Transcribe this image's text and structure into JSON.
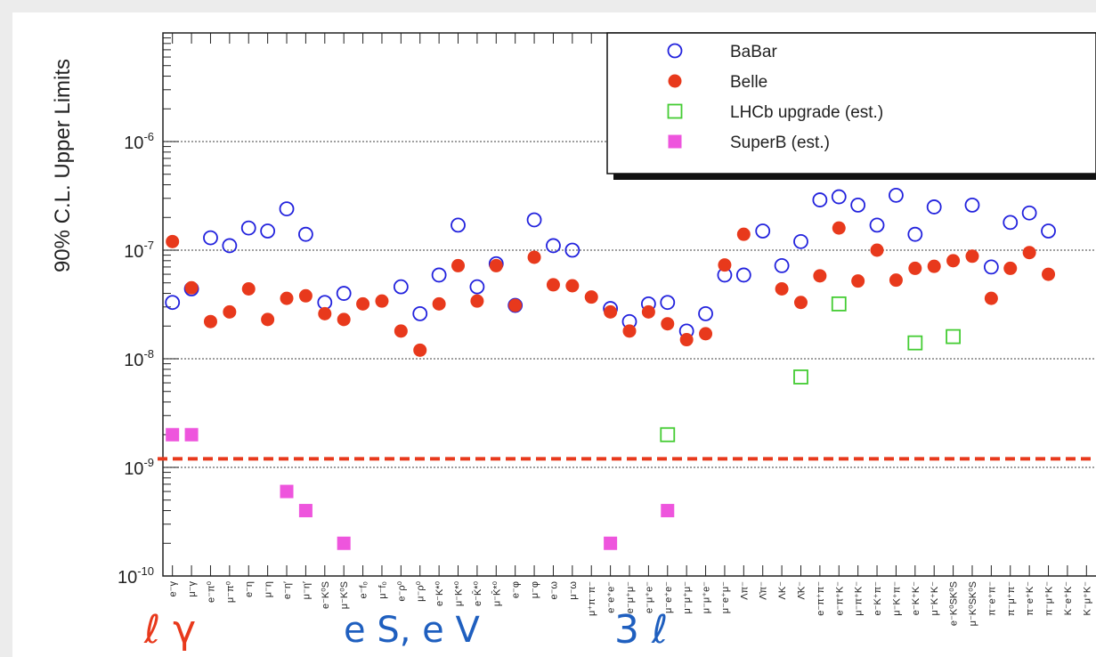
{
  "chart_data": {
    "type": "scatter",
    "ylabel": "90% C.L. Upper Limits",
    "yscale": "log",
    "ylim": [
      1e-10,
      1e-05
    ],
    "y_ticks": [
      {
        "value": 1e-10,
        "mantissa": "10",
        "exp": "-10"
      },
      {
        "value": 1e-09,
        "mantissa": "10",
        "exp": "-9"
      },
      {
        "value": 1e-08,
        "mantissa": "10",
        "exp": "-8"
      },
      {
        "value": 1e-07,
        "mantissa": "10",
        "exp": "-7"
      },
      {
        "value": 1e-06,
        "mantissa": "10",
        "exp": "-6"
      }
    ],
    "grid_y": [
      1e-09,
      1e-08,
      1e-07,
      1e-06
    ],
    "reference_line": {
      "value": 1.2e-09,
      "color": "#e8391c"
    },
    "categories": [
      "e⁻γ",
      "μ⁻γ",
      "e⁻π⁰",
      "μ⁻π⁰",
      "e⁻η",
      "μ⁻η",
      "e⁻η′",
      "μ⁻η′",
      "e⁻K⁰S",
      "μ⁻K⁰S",
      "e⁻f₀",
      "μ⁻f₀",
      "e⁻ρ⁰",
      "μ⁻ρ⁰",
      "e⁻K*⁰",
      "μ⁻K*⁰",
      "e⁻K̄*⁰",
      "μ⁻K̄*⁰",
      "e⁻φ",
      "μ⁻φ",
      "e⁻ω",
      "μ⁻ω",
      "μ⁺π⁻π⁻",
      "e⁻e⁺e⁻",
      "e⁻μ⁺μ⁻",
      "e⁻μ⁺e⁻",
      "μ⁻e⁺e⁻",
      "μ⁻μ⁺μ⁻",
      "μ⁻μ⁺e⁻",
      "μ⁻e⁺μ⁻",
      "Λπ⁻",
      "Λ̄π⁻",
      "ΛK⁻",
      "Λ̄K⁻",
      "e⁻π⁺π⁻",
      "e⁻π⁺K⁻",
      "μ⁻π⁺K⁻",
      "e⁻K⁺π⁻",
      "μ⁻K⁺π⁻",
      "e⁻K⁺K⁻",
      "μ⁻K⁺K⁻",
      "e⁻K⁰SK⁰S",
      "μ⁻K⁰SK⁰S",
      "π⁻e⁺π⁻",
      "π⁻μ⁺π⁻",
      "π⁻e⁺K⁻",
      "π⁻μ⁺K⁻",
      "K⁻e⁺K⁻",
      "K⁻μ⁺K⁻"
    ],
    "series": [
      {
        "name": "BaBar",
        "marker": "open-circle",
        "color": "#2222dd",
        "points": [
          [
            0,
            3.3e-08
          ],
          [
            1,
            4.4e-08
          ],
          [
            2,
            1.3e-07
          ],
          [
            3,
            1.1e-07
          ],
          [
            4,
            1.6e-07
          ],
          [
            5,
            1.5e-07
          ],
          [
            6,
            2.4e-07
          ],
          [
            7,
            1.4e-07
          ],
          [
            8,
            3.3e-08
          ],
          [
            9,
            4e-08
          ],
          [
            12,
            4.6e-08
          ],
          [
            13,
            2.6e-08
          ],
          [
            14,
            5.9e-08
          ],
          [
            15,
            1.7e-07
          ],
          [
            16,
            4.6e-08
          ],
          [
            17,
            7.5e-08
          ],
          [
            18,
            3.1e-08
          ],
          [
            19,
            1.9e-07
          ],
          [
            20,
            1.1e-07
          ],
          [
            21,
            1e-07
          ],
          [
            23,
            2.9e-08
          ],
          [
            24,
            2.2e-08
          ],
          [
            25,
            3.2e-08
          ],
          [
            26,
            3.3e-08
          ],
          [
            27,
            1.8e-08
          ],
          [
            28,
            2.6e-08
          ],
          [
            29,
            5.9e-08
          ],
          [
            30,
            5.9e-08
          ],
          [
            31,
            1.5e-07
          ],
          [
            32,
            7.2e-08
          ],
          [
            33,
            1.2e-07
          ],
          [
            34,
            2.9e-07
          ],
          [
            35,
            3.1e-07
          ],
          [
            36,
            2.6e-07
          ],
          [
            37,
            1.7e-07
          ],
          [
            38,
            3.2e-07
          ],
          [
            39,
            1.4e-07
          ],
          [
            40,
            2.5e-07
          ],
          [
            42,
            2.6e-07
          ],
          [
            43,
            7e-08
          ],
          [
            44,
            1.8e-07
          ],
          [
            45,
            2.2e-07
          ],
          [
            46,
            1.5e-07
          ]
        ]
      },
      {
        "name": "Belle",
        "marker": "filled-circle",
        "color": "#e8391c",
        "points": [
          [
            0,
            1.2e-07
          ],
          [
            1,
            4.5e-08
          ],
          [
            2,
            2.2e-08
          ],
          [
            3,
            2.7e-08
          ],
          [
            4,
            4.4e-08
          ],
          [
            5,
            2.3e-08
          ],
          [
            6,
            3.6e-08
          ],
          [
            7,
            3.8e-08
          ],
          [
            8,
            2.6e-08
          ],
          [
            9,
            2.3e-08
          ],
          [
            10,
            3.2e-08
          ],
          [
            11,
            3.4e-08
          ],
          [
            12,
            1.8e-08
          ],
          [
            13,
            1.2e-08
          ],
          [
            14,
            3.2e-08
          ],
          [
            15,
            7.2e-08
          ],
          [
            16,
            3.4e-08
          ],
          [
            17,
            7.2e-08
          ],
          [
            18,
            3.1e-08
          ],
          [
            19,
            8.6e-08
          ],
          [
            20,
            4.8e-08
          ],
          [
            21,
            4.7e-08
          ],
          [
            22,
            3.7e-08
          ],
          [
            23,
            2.7e-08
          ],
          [
            24,
            1.8e-08
          ],
          [
            25,
            2.7e-08
          ],
          [
            26,
            2.1e-08
          ],
          [
            27,
            1.5e-08
          ],
          [
            28,
            1.7e-08
          ],
          [
            29,
            7.3e-08
          ],
          [
            30,
            1.4e-07
          ],
          [
            32,
            4.4e-08
          ],
          [
            33,
            3.3e-08
          ],
          [
            34,
            5.8e-08
          ],
          [
            35,
            1.6e-07
          ],
          [
            36,
            5.2e-08
          ],
          [
            37,
            1e-07
          ],
          [
            38,
            5.3e-08
          ],
          [
            39,
            6.8e-08
          ],
          [
            40,
            7.1e-08
          ],
          [
            41,
            8e-08
          ],
          [
            42,
            8.8e-08
          ],
          [
            43,
            3.6e-08
          ],
          [
            44,
            6.8e-08
          ],
          [
            45,
            9.5e-08
          ],
          [
            46,
            6e-08
          ]
        ]
      },
      {
        "name": "LHCb upgrade (est.)",
        "marker": "open-square",
        "color": "#44cc33",
        "points": [
          [
            26,
            2e-09
          ],
          [
            33,
            6.8e-09
          ],
          [
            35,
            3.2e-08
          ],
          [
            39,
            1.4e-08
          ],
          [
            41,
            1.6e-08
          ]
        ]
      },
      {
        "name": "SuperB (est.)",
        "marker": "filled-square",
        "color": "#ee55dd",
        "points": [
          [
            0,
            2e-09
          ],
          [
            1,
            2e-09
          ],
          [
            6,
            6e-10
          ],
          [
            7,
            4e-10
          ],
          [
            9,
            2e-10
          ],
          [
            23,
            2e-10
          ],
          [
            26,
            4e-10
          ]
        ]
      }
    ],
    "legend_position": "top-right"
  },
  "bottom_labels": [
    {
      "text": "ℓ γ",
      "color": "#e8391c"
    },
    {
      "text": "e S, e V",
      "color": "#1f5fbf"
    },
    {
      "text": "3 ℓ",
      "color": "#1f5fbf"
    }
  ]
}
